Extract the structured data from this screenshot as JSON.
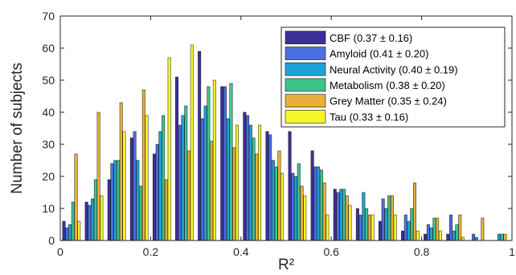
{
  "chart_data": {
    "type": "bar",
    "title": "",
    "xlabel": "R²",
    "ylabel": "Number of subjects",
    "xlim": [
      0,
      1
    ],
    "ylim": [
      0,
      70
    ],
    "xticks": [
      "0",
      "0.2",
      "0.4",
      "0.6",
      "0.8",
      "1"
    ],
    "yticks": [
      "0",
      "10",
      "20",
      "30",
      "40",
      "50",
      "60",
      "70"
    ],
    "legend_position": "top-right",
    "grid": false,
    "bin_width": 0.05,
    "x": [
      0.025,
      0.075,
      0.125,
      0.175,
      0.225,
      0.275,
      0.325,
      0.375,
      0.425,
      0.475,
      0.525,
      0.575,
      0.625,
      0.675,
      0.725,
      0.775,
      0.825,
      0.875,
      0.925,
      0.975
    ],
    "series": [
      {
        "name": "CBF (0.37 ± 0.16)",
        "color": "#3b2f9a",
        "values": [
          6,
          12,
          19,
          32,
          27,
          51,
          59,
          48,
          40,
          34,
          34,
          28,
          16,
          10,
          6,
          3,
          2,
          2,
          0,
          0
        ]
      },
      {
        "name": "Amyloid (0.41 ± 0.20)",
        "color": "#4a6fe3",
        "values": [
          4,
          11,
          24,
          34,
          30,
          36,
          38,
          48,
          39,
          33,
          21,
          23,
          15,
          8,
          13,
          8,
          5,
          8,
          2,
          0
        ]
      },
      {
        "name": "Neural Activity (0.40 ± 0.19)",
        "color": "#1ca3d8",
        "values": [
          5,
          13,
          25,
          25,
          34,
          39,
          42,
          38,
          36,
          25,
          20,
          23,
          16,
          15,
          10,
          6,
          4,
          3,
          1,
          2
        ]
      },
      {
        "name": "Metabolism (0.38 ± 0.20)",
        "color": "#3cc48f",
        "values": [
          12,
          19,
          25,
          17,
          39,
          42,
          48,
          49,
          32,
          23,
          24,
          22,
          16,
          10,
          14,
          10,
          7,
          5,
          0,
          2
        ]
      },
      {
        "name": "Grey Matter (0.35 ± 0.24)",
        "color": "#e8b038",
        "values": [
          27,
          40,
          43,
          47,
          19,
          28,
          31,
          29,
          27,
          28,
          17,
          18,
          14,
          8,
          14,
          18,
          7,
          8,
          7,
          2
        ]
      },
      {
        "name": "Tau (0.33 ± 0.16)",
        "color": "#f5f52a",
        "values": [
          6,
          14,
          34,
          39,
          57,
          61,
          50,
          36,
          36,
          21,
          14,
          8,
          11,
          8,
          8,
          3,
          3,
          1,
          0,
          0
        ]
      }
    ]
  }
}
